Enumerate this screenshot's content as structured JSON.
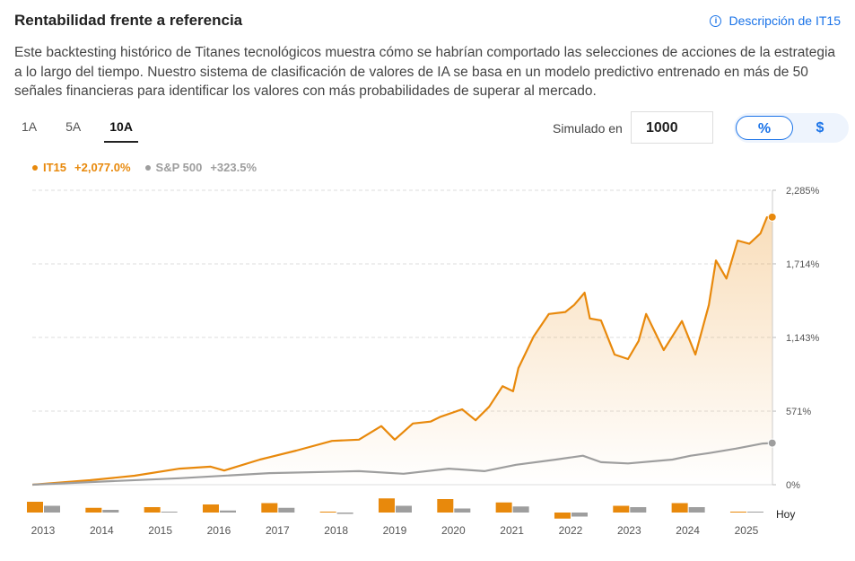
{
  "header": {
    "title": "Rentabilidad frente a referencia",
    "link": "Descripción de IT15",
    "info_icon": "info-circle-icon"
  },
  "intro": "Este backtesting histórico de Titanes tecnológicos muestra cómo se habrían comportado las selecciones de acciones de la estrategia a lo largo del tiempo. Nuestro sistema de clasificación de valores de IA se basa en un modelo predictivo entrenado en más de 50 señales financieras para identificar los valores con más probabilidades de superar al mercado.",
  "tabs": [
    {
      "label": "1A"
    },
    {
      "label": "5A"
    },
    {
      "label": "10A",
      "active": true
    }
  ],
  "simulate": {
    "label": "Simulado en",
    "value": "1000"
  },
  "unit_toggle": {
    "options": [
      "%",
      "$"
    ],
    "selected": "%"
  },
  "colors": {
    "it15": "#e8890c",
    "sp500": "#9e9e9e",
    "accent": "#1a73e8"
  },
  "chart_data": {
    "type": "line",
    "legend": [
      {
        "name": "IT15",
        "value": "+2,077.0%"
      },
      {
        "name": "S&P 500",
        "value": "+323.5%"
      }
    ],
    "legend_position": "top-left",
    "yticks": [
      "2,285%",
      "1,714%",
      "1,143%",
      "571%",
      "0%"
    ],
    "ytick_values": [
      2285,
      1714,
      1143,
      571,
      0
    ],
    "ylim": [
      0,
      2285
    ],
    "grid": true,
    "series": [
      {
        "name": "IT15",
        "points": [
          [
            2012.82,
            0
          ],
          [
            2013.8,
            35
          ],
          [
            2014.56,
            70
          ],
          [
            2015.33,
            125
          ],
          [
            2015.86,
            140
          ],
          [
            2016.09,
            110
          ],
          [
            2016.7,
            195
          ],
          [
            2017.32,
            265
          ],
          [
            2017.93,
            340
          ],
          [
            2018.39,
            350
          ],
          [
            2018.77,
            455
          ],
          [
            2019,
            350
          ],
          [
            2019.31,
            475
          ],
          [
            2019.61,
            490
          ],
          [
            2019.77,
            525
          ],
          [
            2020.15,
            585
          ],
          [
            2020.38,
            500
          ],
          [
            2020.61,
            605
          ],
          [
            2020.84,
            765
          ],
          [
            2021.02,
            725
          ],
          [
            2021.11,
            905
          ],
          [
            2021.37,
            1150
          ],
          [
            2021.63,
            1325
          ],
          [
            2021.91,
            1340
          ],
          [
            2022.06,
            1395
          ],
          [
            2022.24,
            1490
          ],
          [
            2022.33,
            1290
          ],
          [
            2022.52,
            1275
          ],
          [
            2022.75,
            1010
          ],
          [
            2022.98,
            975
          ],
          [
            2023.16,
            1115
          ],
          [
            2023.29,
            1325
          ],
          [
            2023.59,
            1045
          ],
          [
            2023.9,
            1270
          ],
          [
            2024.13,
            1010
          ],
          [
            2024.36,
            1395
          ],
          [
            2024.48,
            1740
          ],
          [
            2024.66,
            1600
          ],
          [
            2024.85,
            1895
          ],
          [
            2025.05,
            1870
          ],
          [
            2025.24,
            1950
          ],
          [
            2025.35,
            2075
          ],
          [
            2025.44,
            2077
          ]
        ]
      },
      {
        "name": "S&P 500",
        "points": [
          [
            2012.82,
            0
          ],
          [
            2013.8,
            20
          ],
          [
            2015.33,
            50
          ],
          [
            2016.86,
            90
          ],
          [
            2018.39,
            105
          ],
          [
            2019.15,
            85
          ],
          [
            2019.92,
            125
          ],
          [
            2020.53,
            105
          ],
          [
            2021.07,
            155
          ],
          [
            2021.75,
            195
          ],
          [
            2022.21,
            225
          ],
          [
            2022.52,
            175
          ],
          [
            2022.98,
            165
          ],
          [
            2023.74,
            195
          ],
          [
            2024.05,
            225
          ],
          [
            2024.36,
            245
          ],
          [
            2024.82,
            280
          ],
          [
            2025.28,
            320
          ],
          [
            2025.44,
            323.5
          ]
        ]
      }
    ],
    "annual_returns": {
      "categories": [
        "2013",
        "2014",
        "2015",
        "2016",
        "2017",
        "2018",
        "2019",
        "2020",
        "2021",
        "2022",
        "2023",
        "2024",
        "2025"
      ],
      "last_label": "Hoy",
      "IT15": [
        16,
        7,
        8,
        12,
        14,
        0.5,
        21,
        20,
        15,
        -9,
        10,
        14,
        0.5
      ],
      "S&P 500": [
        10,
        4,
        0.5,
        3,
        7,
        -2,
        10,
        6,
        9,
        -6,
        8,
        8,
        0.5
      ]
    }
  }
}
